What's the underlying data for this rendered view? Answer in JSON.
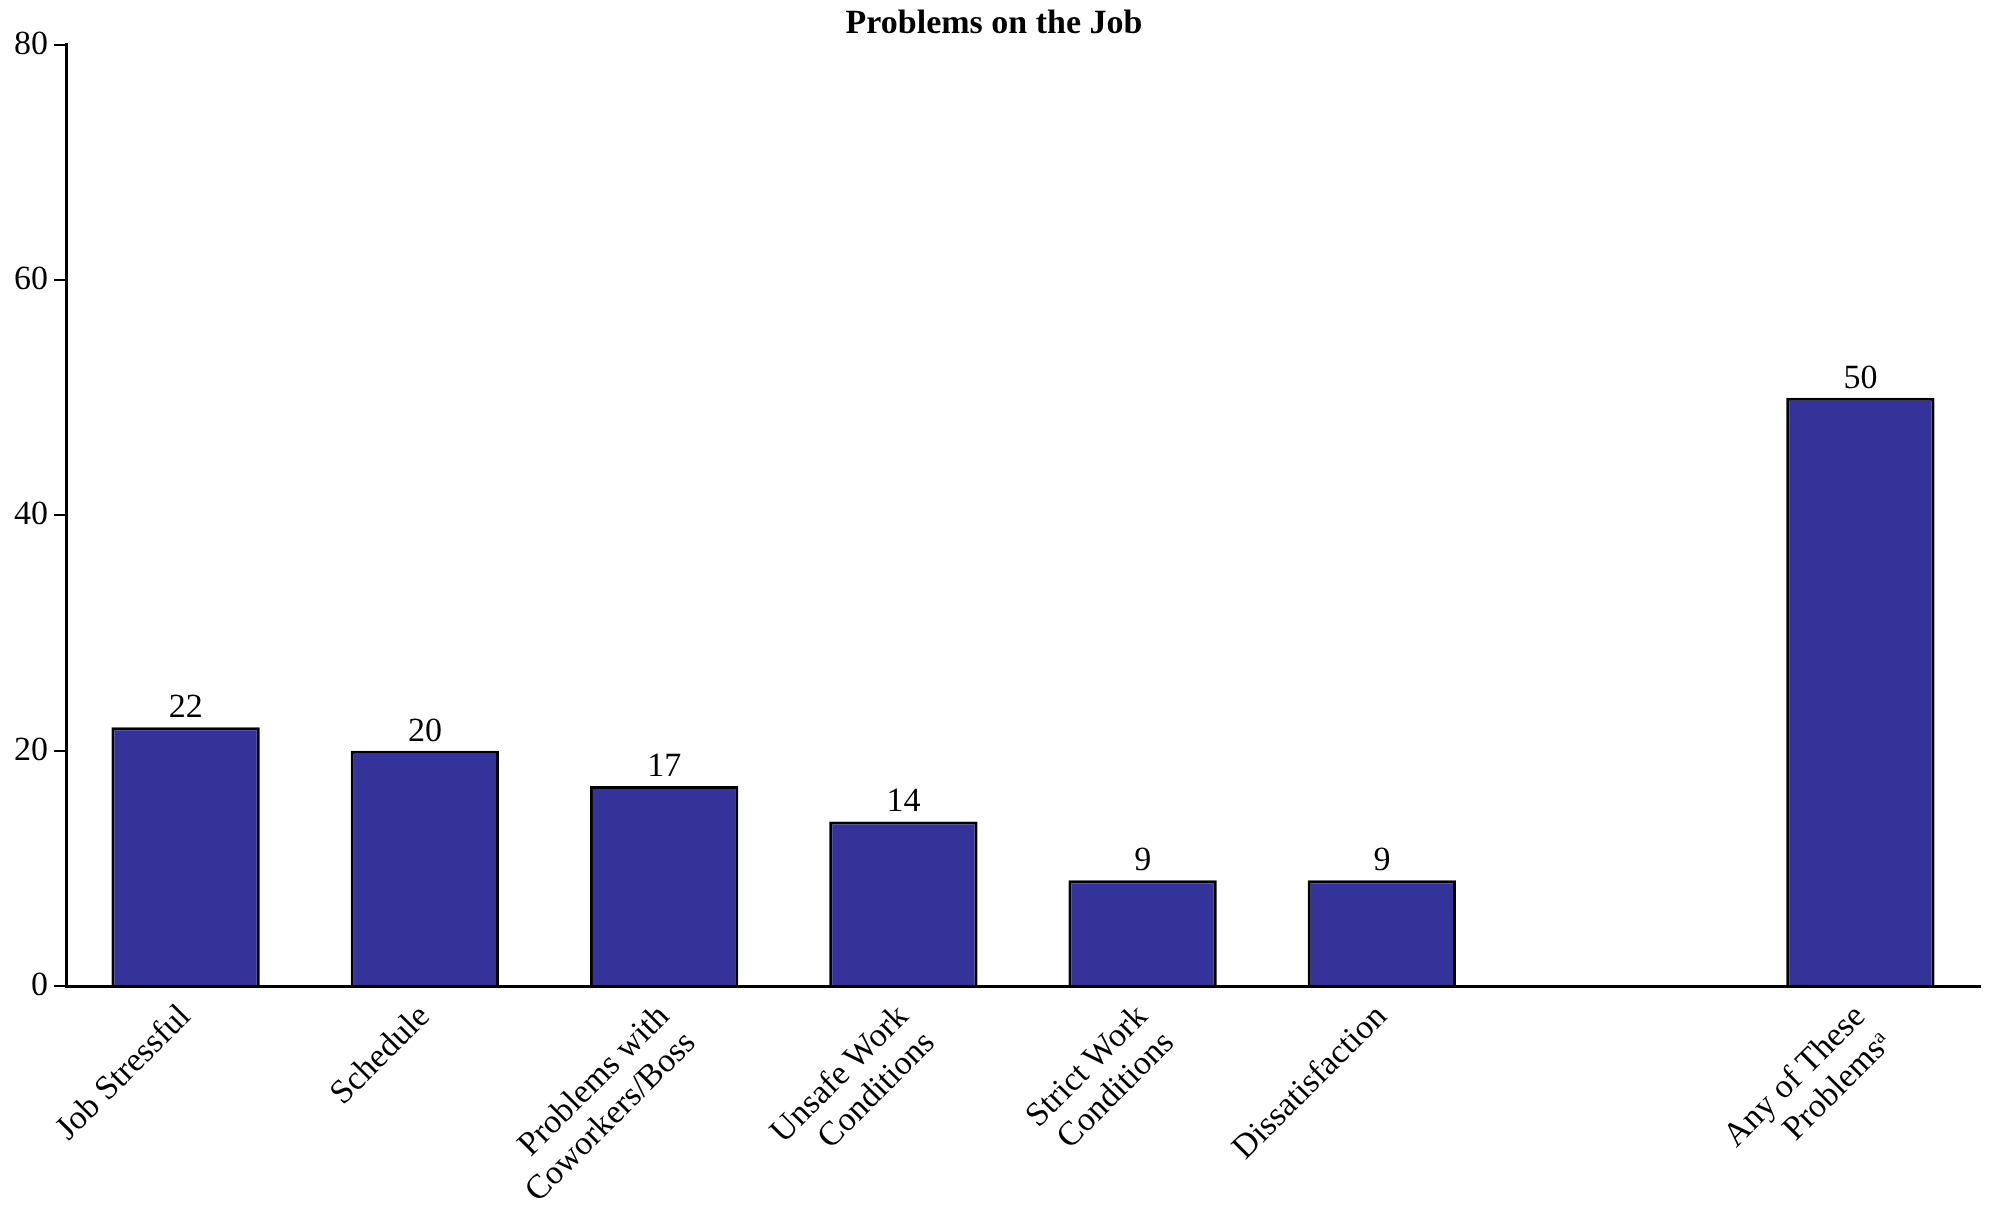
{
  "chart_data": {
    "type": "bar",
    "title": "Problems on the Job",
    "categories": [
      "Job Stressful",
      "Schedule",
      "Problems with\nCoworkers/Boss",
      "Unsafe Work\nConditions",
      "Strict Work\nConditions",
      "Dissatisfaction",
      null,
      "Any of These\nProblemsᵃ"
    ],
    "values": [
      22,
      20,
      17,
      14,
      9,
      9,
      null,
      50
    ],
    "color": "#333399",
    "ylim": [
      0,
      80
    ],
    "yticks": [
      0,
      20,
      40,
      60,
      80
    ],
    "grid": false,
    "legend": false,
    "data_labels": true
  }
}
